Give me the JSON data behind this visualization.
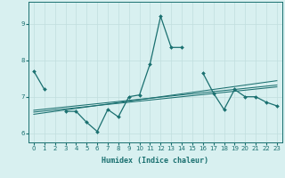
{
  "xlabel": "Humidex (Indice chaleur)",
  "x": [
    0,
    1,
    2,
    3,
    4,
    5,
    6,
    7,
    8,
    9,
    10,
    11,
    12,
    13,
    14,
    15,
    16,
    17,
    18,
    19,
    20,
    21,
    22,
    23
  ],
  "line1": [
    7.7,
    7.2,
    null,
    6.6,
    6.6,
    6.3,
    6.05,
    6.65,
    6.45,
    7.0,
    7.05,
    7.9,
    9.2,
    8.35,
    8.35,
    null,
    7.65,
    7.1,
    6.65,
    7.2,
    7.0,
    7.0,
    6.85,
    6.75
  ],
  "line2": [
    6.52,
    6.56,
    6.6,
    6.64,
    6.68,
    6.72,
    6.76,
    6.8,
    6.84,
    6.88,
    6.92,
    6.96,
    7.0,
    7.04,
    7.08,
    7.12,
    7.16,
    7.2,
    7.24,
    7.28,
    7.32,
    7.36,
    7.4,
    7.44
  ],
  "line3": [
    6.58,
    6.61,
    6.64,
    6.67,
    6.7,
    6.73,
    6.76,
    6.79,
    6.82,
    6.85,
    6.88,
    6.91,
    6.94,
    6.97,
    7.0,
    7.03,
    7.06,
    7.09,
    7.12,
    7.15,
    7.18,
    7.21,
    7.24,
    7.27
  ],
  "line4": [
    6.63,
    6.66,
    6.69,
    6.72,
    6.75,
    6.78,
    6.81,
    6.84,
    6.87,
    6.9,
    6.93,
    6.96,
    6.99,
    7.02,
    7.05,
    7.08,
    7.11,
    7.14,
    7.17,
    7.2,
    7.23,
    7.26,
    7.29,
    7.32
  ],
  "line_color": "#1a7070",
  "bg_color": "#d8f0f0",
  "grid_color": "#c0dede",
  "ylim": [
    5.75,
    9.6
  ],
  "xlim": [
    -0.5,
    23.5
  ],
  "yticks": [
    6,
    7,
    8,
    9
  ],
  "xticks": [
    0,
    1,
    2,
    3,
    4,
    5,
    6,
    7,
    8,
    9,
    10,
    11,
    12,
    13,
    14,
    15,
    16,
    17,
    18,
    19,
    20,
    21,
    22,
    23
  ]
}
